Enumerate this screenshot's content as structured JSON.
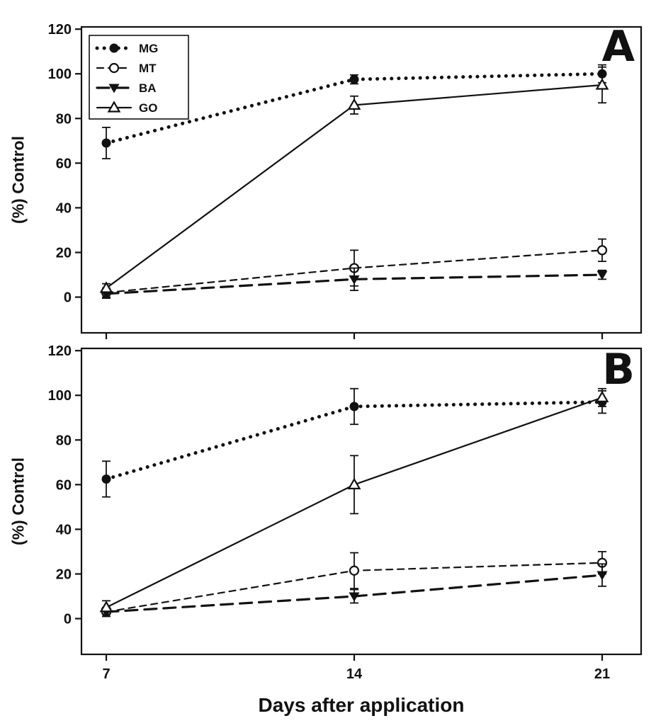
{
  "figure": {
    "xlabel": "Days after application",
    "background": "#ffffff",
    "ink": "#111111"
  },
  "chart_data": [
    {
      "type": "line",
      "panel_label": "A",
      "title": "",
      "xlabel": "Days after application",
      "ylabel": "(%) Control",
      "x": [
        7,
        14,
        21
      ],
      "xticks": [
        7,
        14,
        21
      ],
      "yticks": [
        0,
        20,
        40,
        60,
        80,
        100,
        120
      ],
      "xlim": [
        6.3,
        22.1
      ],
      "ylim": [
        -16,
        121
      ],
      "grid": false,
      "legend": {
        "visible": true,
        "position": "top-left",
        "entries": [
          "MG",
          "MT",
          "BA",
          "GO"
        ]
      },
      "series": [
        {
          "name": "MG",
          "marker": "filled-circle",
          "line_style": "dotted",
          "values": [
            69,
            97.5,
            100
          ],
          "errors": [
            7,
            2,
            4
          ]
        },
        {
          "name": "MT",
          "marker": "open-circle",
          "line_style": "dashed",
          "values": [
            2,
            13,
            21
          ],
          "errors": [
            2,
            8,
            5
          ]
        },
        {
          "name": "BA",
          "marker": "filled-triangle-down",
          "line_style": "longdash",
          "values": [
            1.5,
            8,
            10
          ],
          "errors": [
            2,
            5,
            2
          ]
        },
        {
          "name": "GO",
          "marker": "open-triangle-up",
          "line_style": "solid",
          "values": [
            4,
            86,
            95
          ],
          "errors": [
            2,
            4,
            8
          ]
        }
      ]
    },
    {
      "type": "line",
      "panel_label": "B",
      "title": "",
      "xlabel": "Days after application",
      "ylabel": "(%) Control",
      "x": [
        7,
        14,
        21
      ],
      "xticks": [
        7,
        14,
        21
      ],
      "yticks": [
        0,
        20,
        40,
        60,
        80,
        100,
        120
      ],
      "xlim": [
        6.3,
        22.1
      ],
      "ylim": [
        -16,
        121
      ],
      "grid": false,
      "legend": {
        "visible": false,
        "position": "none",
        "entries": []
      },
      "series": [
        {
          "name": "MG",
          "marker": "filled-circle",
          "line_style": "dotted",
          "values": [
            62.5,
            95,
            97
          ],
          "errors": [
            8,
            8,
            5
          ]
        },
        {
          "name": "MT",
          "marker": "open-circle",
          "line_style": "dashed",
          "values": [
            3,
            21.5,
            25
          ],
          "errors": [
            2,
            8,
            5
          ]
        },
        {
          "name": "BA",
          "marker": "filled-triangle-down",
          "line_style": "longdash",
          "values": [
            3,
            10,
            19.5
          ],
          "errors": [
            2,
            3,
            5
          ]
        },
        {
          "name": "GO",
          "marker": "open-triangle-up",
          "line_style": "solid",
          "values": [
            5,
            60,
            99
          ],
          "errors": [
            3,
            13,
            4
          ]
        }
      ]
    }
  ]
}
